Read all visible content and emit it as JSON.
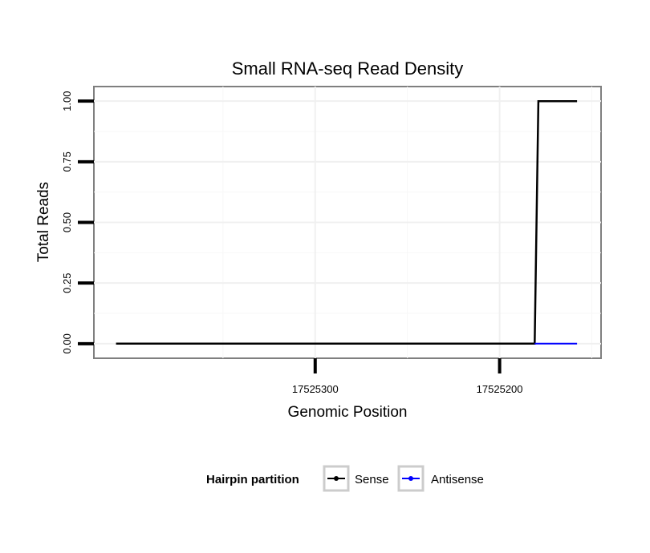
{
  "chart_data": {
    "type": "line",
    "title": "Small RNA-seq Read Density",
    "xlabel": "Genomic Position",
    "ylabel": "Total Reads",
    "xlim": [
      17525420,
      17525145
    ],
    "ylim": [
      -0.06,
      1.06
    ],
    "x_reversed": true,
    "xticks": [
      17525300,
      17525200
    ],
    "xtick_labels": [
      "17525300",
      "17525200"
    ],
    "yticks": [
      0,
      0.25,
      0.5,
      0.75,
      1
    ],
    "ytick_labels": [
      "0.00",
      "0.25",
      "0.50",
      "0.75",
      "1.00"
    ],
    "grid": true,
    "legend_position": "bottom",
    "legend_title": "Hairpin partition",
    "series": [
      {
        "name": "Sense",
        "color": "#000000",
        "x": [
          17525408,
          17525181,
          17525179,
          17525158
        ],
        "y": [
          0,
          0,
          1,
          1
        ]
      },
      {
        "name": "Antisense",
        "color": "#0000ff",
        "x": [
          17525181,
          17525158
        ],
        "y": [
          0,
          0
        ]
      }
    ]
  }
}
